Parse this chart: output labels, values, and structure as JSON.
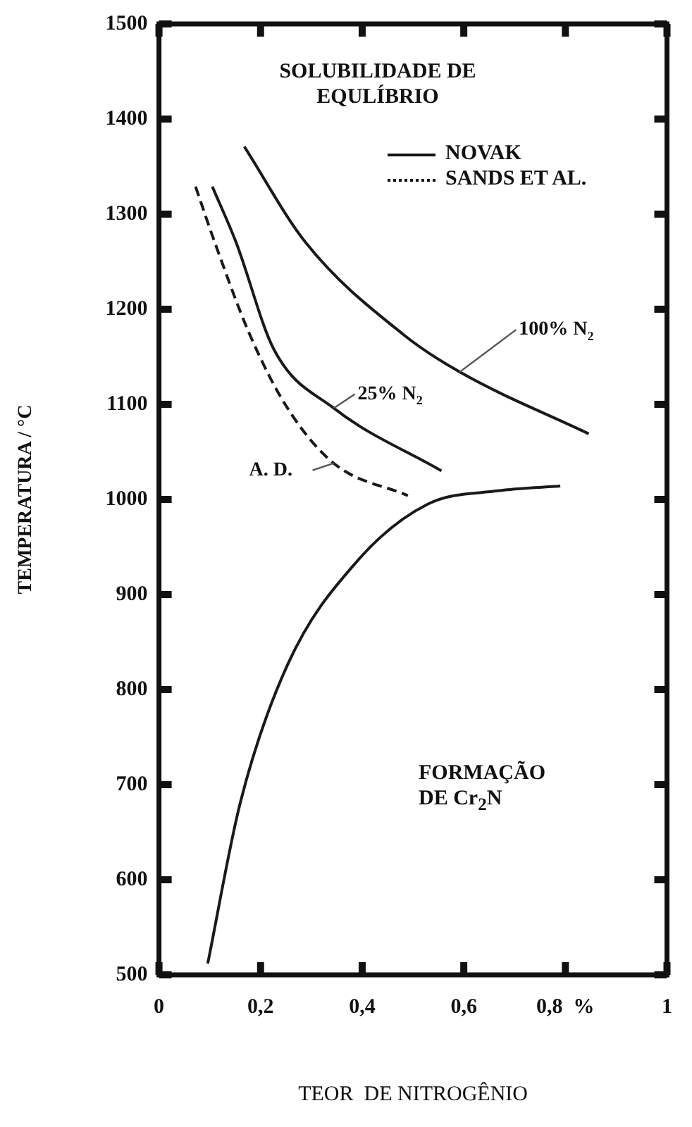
{
  "chart_data": {
    "type": "line",
    "xlabel": "TEOR  DE NITROGÊNIO",
    "ylabel": "TEMPERATURA / °C",
    "xlim": [
      0,
      1
    ],
    "xticks": [
      0,
      {
        "value": 0.2,
        "label": "0,2"
      },
      {
        "value": 0.4,
        "label": "0,4"
      },
      {
        "value": 0.6,
        "label": "0,6"
      },
      {
        "value": 0.8,
        "label": "0,8  %"
      },
      1
    ],
    "ylim": [
      500,
      1500
    ],
    "yticks": [
      500,
      600,
      700,
      800,
      900,
      1000,
      1100,
      1200,
      1300,
      1400,
      1500
    ],
    "grid": false,
    "legend": false,
    "marker": "none",
    "annotations": [
      "SOLUBILIDADE DE EQULÍBRIO",
      "NOVAK",
      "SANDS ET AL.",
      "FORMAÇÃO DE Cr$_{2}$N"
    ],
    "series": [
      {
        "name": "100% N$_{2}$",
        "color": "#1a1a1a",
        "line_style": "solid",
        "x": [
          0.168,
          0.289,
          0.482,
          0.592,
          0.846
        ],
        "values": [
          1371,
          1270,
          1173,
          1134,
          1069
        ]
      },
      {
        "name": "25% N$_{2}$",
        "color": "#1a1a1a",
        "line_style": "solid",
        "x": [
          0.105,
          0.152,
          0.226,
          0.344,
          0.556
        ],
        "values": [
          1329,
          1270,
          1158,
          1096,
          1030
        ]
      },
      {
        "name": "A. D.",
        "color": "#1a1a1a",
        "line_style": "dashed",
        "x": [
          0.072,
          0.11,
          0.179,
          0.253,
          0.344,
          0.49
        ],
        "values": [
          1329,
          1270,
          1173,
          1096,
          1038,
          1004
        ]
      },
      {
        "color": "#1a1a1a",
        "line_style": "solid",
        "x": [
          0.096,
          0.16,
          0.253,
          0.39,
          0.529,
          0.667,
          0.79
        ],
        "values": [
          512,
          681,
          826,
          935,
          995,
          1009,
          1014
        ]
      }
    ]
  }
}
